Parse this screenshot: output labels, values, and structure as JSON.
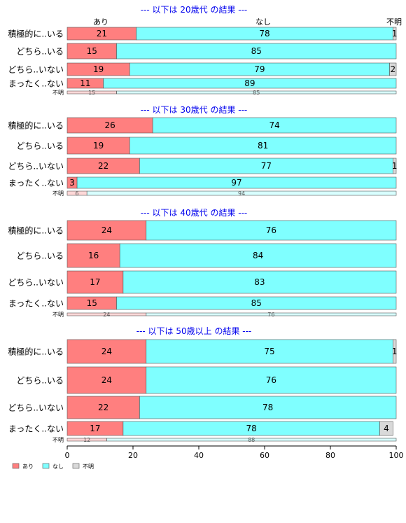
{
  "chart_data": {
    "type": "bar",
    "orientation": "horizontal",
    "stacked": true,
    "legend_placement": "bottom-left",
    "x_ticks": [
      "0",
      "20",
      "40",
      "60",
      "80",
      "100"
    ],
    "xlim": [
      0,
      100
    ],
    "header_labels": [
      "あり",
      "なし",
      "不明"
    ],
    "legend": [
      "あり",
      "なし",
      "不明"
    ],
    "colors": {
      "あり": "#ff7f7f",
      "なし": "#7fffff",
      "不明": "#d9d9d9",
      "title": "#0000ee"
    },
    "panels": [
      {
        "title": "--- 以下は 20歳代 の結果 ---",
        "categories": [
          "積極的に..いる",
          "どちら..いる",
          "どちら..いない",
          "まったく..ない",
          "不明"
        ],
        "series": [
          {
            "name": "あり",
            "values": [
              21,
              15,
              19,
              11,
              15
            ]
          },
          {
            "name": "なし",
            "values": [
              78,
              85,
              79,
              89,
              85
            ]
          },
          {
            "name": "不明",
            "values": [
              1,
              0,
              2,
              0,
              0
            ]
          }
        ]
      },
      {
        "title": "--- 以下は 30歳代 の結果 ---",
        "categories": [
          "積極的に..いる",
          "どちら..いる",
          "どちら..いない",
          "まったく..ない",
          "不明"
        ],
        "series": [
          {
            "name": "あり",
            "values": [
              26,
              19,
              22,
              3,
              6
            ]
          },
          {
            "name": "なし",
            "values": [
              74,
              81,
              77,
              97,
              94
            ]
          },
          {
            "name": "不明",
            "values": [
              0,
              0,
              1,
              0,
              0
            ]
          }
        ]
      },
      {
        "title": "--- 以下は 40歳代 の結果 ---",
        "categories": [
          "積極的に..いる",
          "どちら..いる",
          "どちら..いない",
          "まったく..ない",
          "不明"
        ],
        "series": [
          {
            "name": "あり",
            "values": [
              24,
              16,
              17,
              15,
              24
            ]
          },
          {
            "name": "なし",
            "values": [
              76,
              84,
              83,
              85,
              76
            ]
          },
          {
            "name": "不明",
            "values": [
              0,
              0,
              0,
              0,
              0
            ]
          }
        ]
      },
      {
        "title": "--- 以下は 50歳以上 の結果 ---",
        "categories": [
          "積極的に..いる",
          "どちら..いる",
          "どちら..いない",
          "まったく..ない",
          "不明"
        ],
        "series": [
          {
            "name": "あり",
            "values": [
              24,
              24,
              22,
              17,
              12
            ]
          },
          {
            "name": "なし",
            "values": [
              75,
              76,
              78,
              78,
              88
            ]
          },
          {
            "name": "不明",
            "values": [
              1,
              0,
              0,
              4,
              0
            ]
          }
        ]
      }
    ]
  }
}
